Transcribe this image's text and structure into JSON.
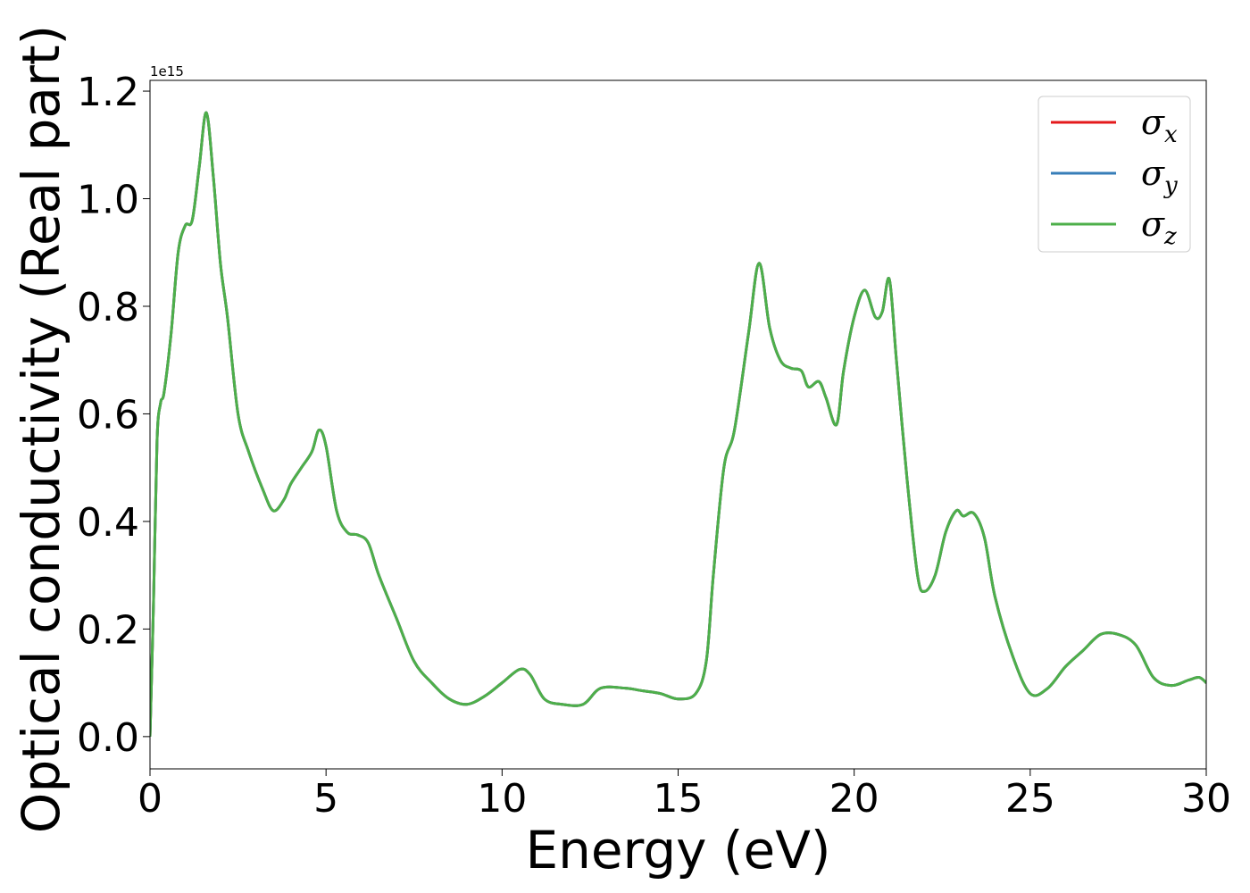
{
  "chart_data": {
    "type": "line",
    "xlabel": "Energy (eV)",
    "ylabel": "Optical conductivity (Real part)",
    "y_offset_text": "1e15",
    "y_scale_factor": 1000000000000000.0,
    "xlim": [
      0,
      30
    ],
    "ylim": [
      -0.06,
      1.22
    ],
    "x_ticks": [
      0,
      5,
      10,
      15,
      20,
      25,
      30
    ],
    "x_tick_labels": [
      "0",
      "5",
      "10",
      "15",
      "20",
      "25",
      "30"
    ],
    "y_ticks": [
      0.0,
      0.2,
      0.4,
      0.6,
      0.8,
      1.0,
      1.2
    ],
    "y_tick_labels": [
      "0.0",
      "0.2",
      "0.4",
      "0.6",
      "0.8",
      "1.0",
      "1.2"
    ],
    "grid": false,
    "legend_position": "upper-right",
    "x": [
      0.0,
      0.1,
      0.2,
      0.3,
      0.4,
      0.6,
      0.8,
      1.0,
      1.2,
      1.4,
      1.6,
      1.8,
      2.0,
      2.2,
      2.5,
      2.8,
      3.2,
      3.5,
      3.8,
      4.0,
      4.3,
      4.6,
      4.8,
      5.0,
      5.3,
      5.6,
      5.9,
      6.2,
      6.5,
      7.0,
      7.5,
      8.0,
      8.5,
      9.0,
      9.5,
      10.0,
      10.5,
      10.8,
      11.2,
      11.7,
      12.3,
      12.8,
      13.5,
      14.0,
      14.5,
      15.0,
      15.5,
      15.8,
      16.0,
      16.3,
      16.6,
      17.0,
      17.3,
      17.6,
      17.9,
      18.2,
      18.5,
      18.7,
      19.0,
      19.2,
      19.5,
      19.7,
      20.0,
      20.3,
      20.6,
      20.8,
      21.0,
      21.2,
      21.5,
      21.8,
      22.0,
      22.3,
      22.6,
      22.9,
      23.1,
      23.4,
      23.7,
      24.0,
      24.5,
      25.0,
      25.5,
      26.0,
      26.5,
      27.0,
      27.5,
      28.0,
      28.5,
      29.0,
      29.5,
      29.8,
      30.0
    ],
    "series": [
      {
        "name": "σx",
        "color": "#e41a1c",
        "values": [
          0.0,
          0.25,
          0.55,
          0.62,
          0.64,
          0.75,
          0.9,
          0.95,
          0.96,
          1.06,
          1.16,
          1.04,
          0.88,
          0.78,
          0.6,
          0.53,
          0.46,
          0.42,
          0.44,
          0.47,
          0.5,
          0.53,
          0.57,
          0.54,
          0.42,
          0.38,
          0.375,
          0.36,
          0.3,
          0.22,
          0.14,
          0.1,
          0.07,
          0.06,
          0.075,
          0.1,
          0.125,
          0.115,
          0.07,
          0.06,
          0.06,
          0.09,
          0.09,
          0.085,
          0.08,
          0.07,
          0.08,
          0.14,
          0.3,
          0.5,
          0.57,
          0.75,
          0.88,
          0.76,
          0.7,
          0.685,
          0.68,
          0.65,
          0.66,
          0.63,
          0.58,
          0.68,
          0.78,
          0.83,
          0.78,
          0.79,
          0.85,
          0.7,
          0.48,
          0.3,
          0.27,
          0.3,
          0.38,
          0.42,
          0.41,
          0.415,
          0.37,
          0.26,
          0.15,
          0.08,
          0.09,
          0.13,
          0.16,
          0.19,
          0.19,
          0.17,
          0.11,
          0.095,
          0.105,
          0.11,
          0.1
        ]
      },
      {
        "name": "σy",
        "color": "#377eb8",
        "values": [
          0.0,
          0.25,
          0.55,
          0.62,
          0.64,
          0.75,
          0.9,
          0.95,
          0.96,
          1.06,
          1.16,
          1.04,
          0.88,
          0.78,
          0.6,
          0.53,
          0.46,
          0.42,
          0.44,
          0.47,
          0.5,
          0.53,
          0.57,
          0.54,
          0.42,
          0.38,
          0.375,
          0.36,
          0.3,
          0.22,
          0.14,
          0.1,
          0.07,
          0.06,
          0.075,
          0.1,
          0.125,
          0.115,
          0.07,
          0.06,
          0.06,
          0.09,
          0.09,
          0.085,
          0.08,
          0.07,
          0.08,
          0.14,
          0.3,
          0.5,
          0.57,
          0.75,
          0.88,
          0.76,
          0.7,
          0.685,
          0.68,
          0.65,
          0.66,
          0.63,
          0.58,
          0.68,
          0.78,
          0.83,
          0.78,
          0.79,
          0.85,
          0.7,
          0.48,
          0.3,
          0.27,
          0.3,
          0.38,
          0.42,
          0.41,
          0.415,
          0.37,
          0.26,
          0.15,
          0.08,
          0.09,
          0.13,
          0.16,
          0.19,
          0.19,
          0.17,
          0.11,
          0.095,
          0.105,
          0.11,
          0.1
        ]
      },
      {
        "name": "σz",
        "color": "#4daf4a",
        "values": [
          0.0,
          0.25,
          0.55,
          0.62,
          0.64,
          0.75,
          0.9,
          0.95,
          0.96,
          1.06,
          1.16,
          1.04,
          0.88,
          0.78,
          0.6,
          0.53,
          0.46,
          0.42,
          0.44,
          0.47,
          0.5,
          0.53,
          0.57,
          0.54,
          0.42,
          0.38,
          0.375,
          0.36,
          0.3,
          0.22,
          0.14,
          0.1,
          0.07,
          0.06,
          0.075,
          0.1,
          0.125,
          0.115,
          0.07,
          0.06,
          0.06,
          0.09,
          0.09,
          0.085,
          0.08,
          0.07,
          0.08,
          0.14,
          0.3,
          0.5,
          0.57,
          0.75,
          0.88,
          0.76,
          0.7,
          0.685,
          0.68,
          0.65,
          0.66,
          0.63,
          0.58,
          0.68,
          0.78,
          0.83,
          0.78,
          0.79,
          0.85,
          0.7,
          0.48,
          0.3,
          0.27,
          0.3,
          0.38,
          0.42,
          0.41,
          0.415,
          0.37,
          0.26,
          0.15,
          0.08,
          0.09,
          0.13,
          0.16,
          0.19,
          0.19,
          0.17,
          0.11,
          0.095,
          0.105,
          0.11,
          0.1
        ]
      }
    ],
    "legend": [
      {
        "symbol": "σ",
        "subscript": "x"
      },
      {
        "symbol": "σ",
        "subscript": "y"
      },
      {
        "symbol": "σ",
        "subscript": "z"
      }
    ]
  }
}
